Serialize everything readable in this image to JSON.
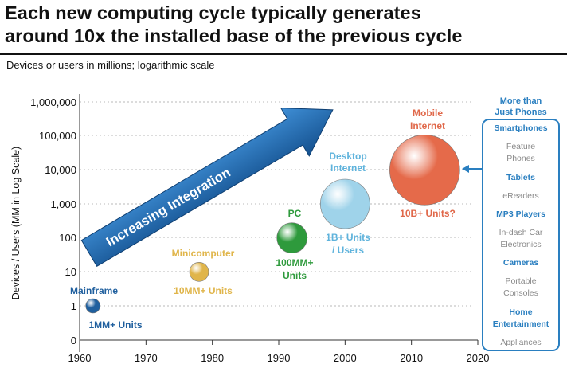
{
  "title_line1": "Each new computing cycle typically generates",
  "title_line2": "around 10x the installed base of the previous cycle",
  "subtitle": "Devices or users in millions; logarithmic scale",
  "chart_data": {
    "type": "scatter",
    "ylabel": "Devices / Users (MM in Log Scale)",
    "xlabel": "",
    "xlim": [
      1960,
      2020
    ],
    "x_ticks": [
      "1960",
      "1970",
      "1980",
      "1990",
      "2000",
      "2010",
      "2020"
    ],
    "y_scale": "log",
    "y_ticks": [
      "1,000,000",
      "100,000",
      "10,000",
      "1,000",
      "100",
      "10",
      "1",
      "0"
    ],
    "grid": true,
    "arrow_label": "Increasing Integration",
    "points": [
      {
        "name": "Mainframe",
        "x": 1962,
        "y": 1,
        "units_label": "1MM+ Units",
        "color": "#1f5f9e"
      },
      {
        "name": "Minicomputer",
        "x": 1978,
        "y": 10,
        "units_label": "10MM+ Units",
        "color": "#e0b54a"
      },
      {
        "name": "PC",
        "x": 1992,
        "y": 100,
        "units_label_lines": [
          "100MM+",
          "Units"
        ],
        "color": "#2e9a3c"
      },
      {
        "name_lines": [
          "Desktop",
          "Internet"
        ],
        "x": 2000,
        "y": 1000,
        "units_label_lines": [
          "1B+ Units",
          "/ Users"
        ],
        "color": "#9fd3ea"
      },
      {
        "name_lines": [
          "Mobile",
          "Internet"
        ],
        "x": 2012,
        "y": 10000,
        "units_label": "10B+ Units?",
        "color": "#e56a4a"
      }
    ]
  },
  "sidebar": {
    "header_lines": [
      "More than",
      "Just Phones"
    ],
    "items": [
      {
        "lines": [
          "Smartphones"
        ],
        "highlight": true
      },
      {
        "lines": [
          "Feature",
          "Phones"
        ],
        "highlight": false
      },
      {
        "lines": [
          "Tablets"
        ],
        "highlight": true
      },
      {
        "lines": [
          "eReaders"
        ],
        "highlight": false
      },
      {
        "lines": [
          "MP3 Players"
        ],
        "highlight": true
      },
      {
        "lines": [
          "In-dash Car",
          "Electronics"
        ],
        "highlight": false
      },
      {
        "lines": [
          "Cameras"
        ],
        "highlight": true
      },
      {
        "lines": [
          "Portable",
          "Consoles"
        ],
        "highlight": false
      },
      {
        "lines": [
          "Home",
          "Entertainment"
        ],
        "highlight": true
      },
      {
        "lines": [
          "Appliances"
        ],
        "highlight": false
      }
    ]
  }
}
